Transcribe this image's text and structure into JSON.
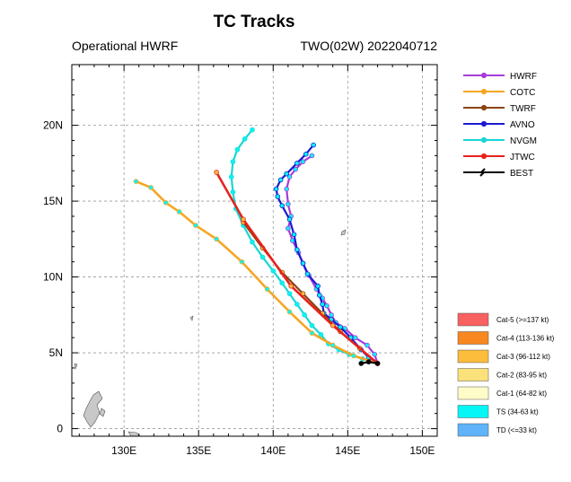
{
  "header": {
    "title": "TC Tracks",
    "left_subtitle": "Operational HWRF",
    "right_subtitle": "TWO(02W) 2022040712"
  },
  "chart_data": {
    "type": "line",
    "title": "TC Tracks",
    "xlim": [
      126.5,
      151
    ],
    "ylim": [
      -0.5,
      24
    ],
    "grid": true,
    "x_ticks": [
      130,
      135,
      140,
      145,
      150
    ],
    "x_tick_labels": [
      "130E",
      "135E",
      "140E",
      "145E",
      "150E"
    ],
    "y_ticks": [
      0,
      5,
      10,
      15,
      20
    ],
    "y_tick_labels": [
      "0",
      "5N",
      "10N",
      "15N",
      "20N"
    ],
    "legend_position": "right",
    "series": [
      {
        "name": "HWRF",
        "color": "#a63cd8",
        "x": [
          147.0,
          146.8,
          146.3,
          145.5,
          144.8,
          144.2,
          143.9,
          143.6,
          143.3,
          142.9,
          142.4,
          142.0,
          141.7,
          141.3,
          141.0,
          141.2,
          141.0,
          140.9,
          141.1,
          141.5,
          142.0,
          142.6
        ],
        "y": [
          4.3,
          4.9,
          5.5,
          6.0,
          6.6,
          7.0,
          7.5,
          8.1,
          8.6,
          9.2,
          10.1,
          10.9,
          11.6,
          12.4,
          13.2,
          14.0,
          14.8,
          15.8,
          16.6,
          17.1,
          17.6,
          18.0
        ]
      },
      {
        "name": "COTC",
        "color": "#f5a623",
        "x": [
          147.0,
          145.4,
          144.0,
          142.6,
          141.1,
          139.6,
          137.9,
          136.2,
          134.8,
          133.7,
          132.8,
          131.8,
          130.8
        ],
        "y": [
          4.3,
          4.8,
          5.5,
          6.3,
          7.7,
          9.2,
          11.0,
          12.5,
          13.4,
          14.3,
          14.9,
          15.9,
          16.3
        ]
      },
      {
        "name": "TWRF",
        "color": "#8b4513",
        "x": [
          147.0,
          145.8,
          144.5,
          143.3,
          142.0,
          140.6,
          139.3,
          138.0
        ],
        "y": [
          4.3,
          5.3,
          6.4,
          7.6,
          8.9,
          10.3,
          11.9,
          13.6
        ]
      },
      {
        "name": "AVNO",
        "color": "#1b1bd0",
        "x": [
          147.0,
          146.4,
          145.9,
          145.2,
          144.5,
          143.9,
          143.4,
          143.3,
          143.1,
          143.0,
          142.3,
          142.0,
          141.6,
          141.4,
          141.1,
          140.6,
          140.3,
          140.2,
          140.5,
          140.9,
          141.6,
          142.2,
          142.7
        ],
        "y": [
          4.3,
          4.7,
          5.2,
          6.0,
          6.7,
          7.2,
          7.6,
          8.2,
          8.8,
          9.4,
          10.2,
          10.9,
          11.8,
          12.8,
          13.8,
          14.7,
          15.3,
          15.8,
          16.4,
          16.8,
          17.5,
          18.1,
          18.7
        ]
      },
      {
        "name": "NVGM",
        "color": "#19d6d6",
        "x": [
          147.0,
          146.0,
          145.1,
          144.4,
          143.7,
          143.2,
          142.6,
          142.1,
          141.6,
          141.1,
          140.6,
          140.0,
          139.3,
          138.6,
          138.0,
          137.5,
          137.3,
          137.2,
          137.3,
          137.6,
          138.1,
          138.6
        ],
        "y": [
          4.3,
          4.6,
          4.9,
          5.2,
          5.6,
          6.2,
          6.8,
          7.5,
          8.2,
          8.9,
          9.6,
          10.4,
          11.3,
          12.3,
          13.4,
          14.5,
          15.6,
          16.6,
          17.6,
          18.4,
          19.1,
          19.7
        ]
      },
      {
        "name": "JTWC",
        "color": "#e8221c",
        "x": [
          147.0,
          144.0,
          141.2,
          138.0,
          136.2
        ],
        "y": [
          4.3,
          6.8,
          9.4,
          13.8,
          16.9
        ]
      },
      {
        "name": "BEST",
        "color": "#000000",
        "x": [
          147.0,
          146.4,
          145.9
        ],
        "y": [
          4.3,
          4.4,
          4.3
        ]
      }
    ],
    "intensity_scale": [
      {
        "label": "Cat-5 (>=137 kt)",
        "color": "#f96060"
      },
      {
        "label": "Cat-4 (113-136 kt)",
        "color": "#f7871e"
      },
      {
        "label": "Cat-3 (96-112 kt)",
        "color": "#fbbd3b"
      },
      {
        "label": "Cat-2 (83-95 kt)",
        "color": "#fae17a"
      },
      {
        "label": "Cat-1 (64-82 kt)",
        "color": "#fefcc8"
      },
      {
        "label": "TS (34-63 kt)",
        "color": "#06f6f6"
      },
      {
        "label": "TD (<=33 kt)",
        "color": "#5fb3f8"
      }
    ]
  }
}
